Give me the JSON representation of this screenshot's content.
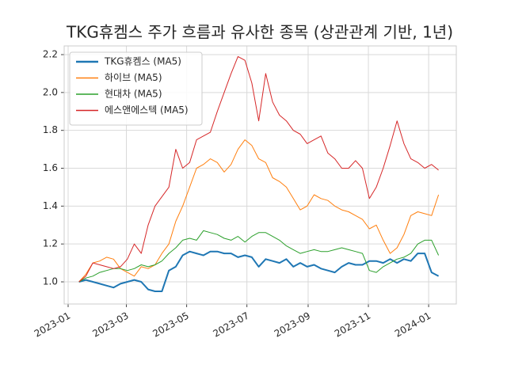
{
  "chart_data": {
    "type": "line",
    "title": "TKG휴켐스 주가 흐름과 유사한 종목 (상관관계 기반, 1년)",
    "x": [
      "2023-01-12",
      "2023-01-19",
      "2023-01-26",
      "2023-02-02",
      "2023-02-09",
      "2023-02-16",
      "2023-02-23",
      "2023-03-02",
      "2023-03-09",
      "2023-03-16",
      "2023-03-23",
      "2023-03-30",
      "2023-04-06",
      "2023-04-13",
      "2023-04-20",
      "2023-04-27",
      "2023-05-04",
      "2023-05-11",
      "2023-05-18",
      "2023-05-25",
      "2023-06-01",
      "2023-06-08",
      "2023-06-15",
      "2023-06-22",
      "2023-06-29",
      "2023-07-06",
      "2023-07-13",
      "2023-07-20",
      "2023-07-27",
      "2023-08-03",
      "2023-08-10",
      "2023-08-17",
      "2023-08-24",
      "2023-08-31",
      "2023-09-07",
      "2023-09-14",
      "2023-09-21",
      "2023-09-28",
      "2023-10-05",
      "2023-10-12",
      "2023-10-19",
      "2023-10-26",
      "2023-11-02",
      "2023-11-09",
      "2023-11-16",
      "2023-11-23",
      "2023-11-30",
      "2023-12-07",
      "2023-12-14",
      "2023-12-21",
      "2023-12-28",
      "2024-01-04",
      "2024-01-11"
    ],
    "series": [
      {
        "name": "TKG휴켐스 (MA5)",
        "color": "#1f77b4",
        "width": 2,
        "values": [
          1.0,
          1.01,
          1.0,
          0.99,
          0.98,
          0.97,
          0.99,
          1.0,
          1.01,
          1.0,
          0.96,
          0.95,
          0.95,
          1.06,
          1.08,
          1.14,
          1.16,
          1.15,
          1.14,
          1.16,
          1.16,
          1.15,
          1.15,
          1.13,
          1.14,
          1.13,
          1.08,
          1.12,
          1.11,
          1.1,
          1.12,
          1.08,
          1.1,
          1.08,
          1.09,
          1.07,
          1.06,
          1.05,
          1.08,
          1.1,
          1.09,
          1.09,
          1.11,
          1.11,
          1.1,
          1.12,
          1.1,
          1.12,
          1.11,
          1.15,
          1.15,
          1.05,
          1.03
        ]
      },
      {
        "name": "하이브 (MA5)",
        "color": "#ff7f0e",
        "width": 1,
        "values": [
          1.0,
          1.04,
          1.1,
          1.11,
          1.13,
          1.12,
          1.07,
          1.05,
          1.03,
          1.08,
          1.07,
          1.09,
          1.15,
          1.2,
          1.32,
          1.4,
          1.5,
          1.6,
          1.62,
          1.65,
          1.63,
          1.58,
          1.62,
          1.7,
          1.75,
          1.72,
          1.65,
          1.63,
          1.55,
          1.53,
          1.5,
          1.44,
          1.38,
          1.4,
          1.46,
          1.44,
          1.43,
          1.4,
          1.38,
          1.37,
          1.35,
          1.33,
          1.28,
          1.3,
          1.22,
          1.15,
          1.18,
          1.25,
          1.35,
          1.37,
          1.36,
          1.35,
          1.46
        ]
      },
      {
        "name": "현대차 (MA5)",
        "color": "#2ca02c",
        "width": 1,
        "values": [
          1.0,
          1.02,
          1.03,
          1.05,
          1.06,
          1.07,
          1.07,
          1.06,
          1.07,
          1.09,
          1.08,
          1.09,
          1.11,
          1.15,
          1.18,
          1.22,
          1.23,
          1.22,
          1.27,
          1.26,
          1.25,
          1.23,
          1.22,
          1.24,
          1.21,
          1.24,
          1.26,
          1.26,
          1.24,
          1.22,
          1.19,
          1.17,
          1.15,
          1.16,
          1.17,
          1.16,
          1.16,
          1.17,
          1.18,
          1.17,
          1.16,
          1.15,
          1.06,
          1.05,
          1.08,
          1.1,
          1.12,
          1.13,
          1.15,
          1.2,
          1.22,
          1.22,
          1.14
        ]
      },
      {
        "name": "에스앤에스텍 (MA5)",
        "color": "#d62728",
        "width": 1,
        "values": [
          1.0,
          1.03,
          1.1,
          1.09,
          1.08,
          1.07,
          1.08,
          1.12,
          1.2,
          1.15,
          1.3,
          1.4,
          1.45,
          1.5,
          1.7,
          1.6,
          1.63,
          1.75,
          1.77,
          1.79,
          1.9,
          2.0,
          2.1,
          2.19,
          2.17,
          2.05,
          1.85,
          2.1,
          1.95,
          1.88,
          1.85,
          1.8,
          1.78,
          1.73,
          1.75,
          1.77,
          1.68,
          1.65,
          1.6,
          1.6,
          1.64,
          1.6,
          1.44,
          1.5,
          1.6,
          1.72,
          1.85,
          1.73,
          1.65,
          1.63,
          1.6,
          1.62,
          1.59
        ]
      }
    ],
    "xlim": [
      "2022-12-28",
      "2024-01-29"
    ],
    "xticks": [
      {
        "value": "2023-01-01",
        "label": "2023-01"
      },
      {
        "value": "2023-03-01",
        "label": "2023-03"
      },
      {
        "value": "2023-05-01",
        "label": "2023-05"
      },
      {
        "value": "2023-07-01",
        "label": "2023-07"
      },
      {
        "value": "2023-09-01",
        "label": "2023-09"
      },
      {
        "value": "2023-11-01",
        "label": "2023-11"
      },
      {
        "value": "2024-01-01",
        "label": "2024-01"
      }
    ],
    "ylim": [
      0.883,
      2.246
    ],
    "yticks": [
      {
        "value": 1.0,
        "label": "1.0"
      },
      {
        "value": 1.2,
        "label": "1.2"
      },
      {
        "value": 1.4,
        "label": "1.4"
      },
      {
        "value": 1.6,
        "label": "1.6"
      },
      {
        "value": 1.8,
        "label": "1.8"
      },
      {
        "value": 2.0,
        "label": "2.0"
      },
      {
        "value": 2.2,
        "label": "2.2"
      }
    ],
    "grid": true,
    "legend": "upper left"
  }
}
